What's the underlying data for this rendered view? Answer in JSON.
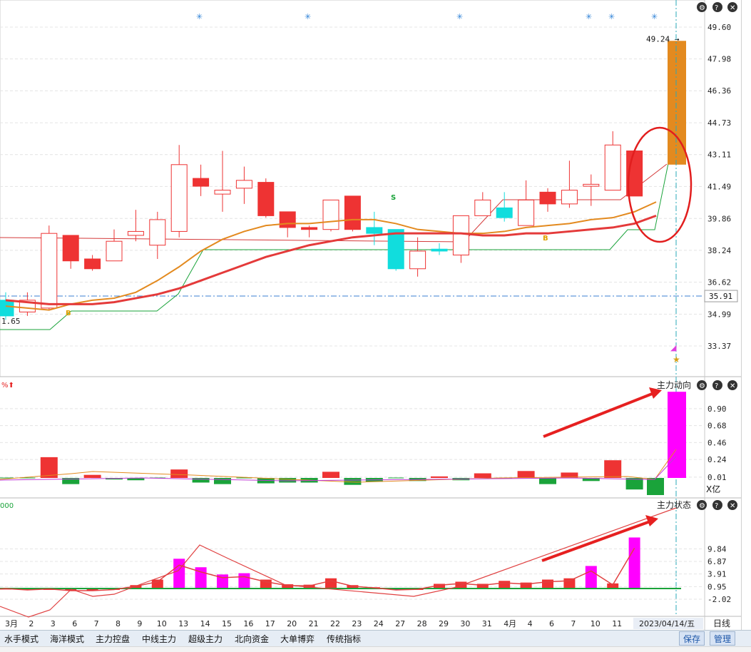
{
  "chart_data": [
    {
      "type": "candlestick",
      "panel": "price",
      "y_ticks": [
        "49.60",
        "47.98",
        "46.36",
        "44.73",
        "43.11",
        "41.49",
        "39.86",
        "38.24",
        "36.62",
        "34.99",
        "33.37"
      ],
      "price_line_label": "35.91",
      "high_label": "49.24",
      "left_low_label": "1.65",
      "x_tick_labels": [
        "3月",
        "2",
        "3",
        "6",
        "7",
        "8",
        "9",
        "10",
        "13",
        "14",
        "15",
        "16",
        "17",
        "20",
        "21",
        "22",
        "23",
        "24",
        "27",
        "28",
        "29",
        "30",
        "31",
        "4月",
        "4",
        "6",
        "7",
        "10",
        "11"
      ],
      "date_label": "2023/04/14/五",
      "period_label": "日线",
      "candles": [
        {
          "o": 35.7,
          "c": 34.9,
          "h": 36.1,
          "l": 34.7,
          "color": "cyan"
        },
        {
          "o": 35.1,
          "c": 35.7,
          "h": 36.1,
          "l": 34.9,
          "color": "white"
        },
        {
          "o": 35.3,
          "c": 39.1,
          "h": 39.5,
          "l": 35.2,
          "color": "white"
        },
        {
          "o": 39.0,
          "c": 37.7,
          "h": 39.0,
          "l": 37.3,
          "color": "red"
        },
        {
          "o": 37.3,
          "c": 37.8,
          "h": 38.0,
          "l": 37.2,
          "color": "red"
        },
        {
          "o": 37.7,
          "c": 38.7,
          "h": 39.3,
          "l": 37.7,
          "color": "white"
        },
        {
          "o": 39.0,
          "c": 39.2,
          "h": 40.3,
          "l": 38.7,
          "color": "white"
        },
        {
          "o": 38.5,
          "c": 39.8,
          "h": 40.2,
          "l": 37.8,
          "color": "white"
        },
        {
          "o": 39.2,
          "c": 42.6,
          "h": 43.6,
          "l": 38.9,
          "color": "white"
        },
        {
          "o": 41.9,
          "c": 41.5,
          "h": 42.6,
          "l": 41.0,
          "color": "red"
        },
        {
          "o": 41.1,
          "c": 41.3,
          "h": 43.3,
          "l": 40.2,
          "color": "white"
        },
        {
          "o": 41.4,
          "c": 41.8,
          "h": 42.5,
          "l": 40.6,
          "color": "white"
        },
        {
          "o": 41.7,
          "c": 40.0,
          "h": 41.9,
          "l": 39.9,
          "color": "red"
        },
        {
          "o": 40.2,
          "c": 39.4,
          "h": 40.2,
          "l": 38.9,
          "color": "red"
        },
        {
          "o": 39.3,
          "c": 39.4,
          "h": 39.5,
          "l": 38.9,
          "color": "red"
        },
        {
          "o": 39.3,
          "c": 40.8,
          "h": 40.8,
          "l": 39.2,
          "color": "white"
        },
        {
          "o": 41.0,
          "c": 39.3,
          "h": 41.0,
          "l": 39.2,
          "color": "red"
        },
        {
          "o": 39.1,
          "c": 39.4,
          "h": 40.2,
          "l": 38.5,
          "color": "cyan"
        },
        {
          "o": 39.3,
          "c": 37.3,
          "h": 39.3,
          "l": 37.2,
          "color": "cyan"
        },
        {
          "o": 37.3,
          "c": 38.2,
          "h": 38.9,
          "l": 36.9,
          "color": "white"
        },
        {
          "o": 38.2,
          "c": 38.3,
          "h": 38.6,
          "l": 38.0,
          "color": "cyan"
        },
        {
          "o": 38.0,
          "c": 40.0,
          "h": 40.0,
          "l": 37.6,
          "color": "white"
        },
        {
          "o": 40.0,
          "c": 40.8,
          "h": 41.2,
          "l": 40.0,
          "color": "white"
        },
        {
          "o": 39.9,
          "c": 40.4,
          "h": 41.2,
          "l": 39.7,
          "color": "cyan"
        },
        {
          "o": 40.8,
          "c": 39.5,
          "h": 41.8,
          "l": 39.5,
          "color": "white"
        },
        {
          "o": 41.2,
          "c": 40.6,
          "h": 41.4,
          "l": 40.2,
          "color": "red"
        },
        {
          "o": 40.6,
          "c": 41.3,
          "h": 42.8,
          "l": 40.4,
          "color": "white"
        },
        {
          "o": 41.6,
          "c": 41.5,
          "h": 42.1,
          "l": 40.5,
          "color": "white"
        },
        {
          "o": 41.3,
          "c": 43.6,
          "h": 44.3,
          "l": 41.3,
          "color": "white"
        },
        {
          "o": 43.3,
          "c": 41.0,
          "h": 43.3,
          "l": 41.0,
          "color": "red"
        }
      ],
      "forecast_bar": {
        "low": 42.6,
        "high": 48.9,
        "color": "#e38a1f"
      },
      "ma_red": [
        35.7,
        35.6,
        35.5,
        35.5,
        35.5,
        35.6,
        35.8,
        36.0,
        36.3,
        36.7,
        37.1,
        37.5,
        37.9,
        38.2,
        38.5,
        38.7,
        38.9,
        39.0,
        39.1,
        39.1,
        39.1,
        39.1,
        39.0,
        39.0,
        39.1,
        39.1,
        39.2,
        39.3,
        39.4,
        39.6,
        40.0
      ],
      "ma_orange": [
        35.4,
        35.3,
        35.2,
        35.5,
        35.7,
        35.8,
        36.1,
        36.7,
        37.4,
        38.2,
        38.8,
        39.2,
        39.5,
        39.6,
        39.6,
        39.7,
        39.8,
        39.8,
        39.6,
        39.3,
        39.2,
        39.1,
        39.1,
        39.2,
        39.4,
        39.5,
        39.6,
        39.8,
        39.9,
        40.2,
        40.7
      ]
    },
    {
      "type": "bar",
      "panel": "main-force-direction",
      "title": "主力动向",
      "unit": "X亿",
      "y_ticks": [
        "0.90",
        "0.68",
        "0.46",
        "0.24",
        "0.01"
      ],
      "values": [
        -0.01,
        0.0,
        0.0,
        0.27,
        -0.08,
        0.04,
        -0.02,
        -0.03,
        0.0,
        0.11,
        -0.06,
        -0.08,
        0.0,
        -0.07,
        -0.06,
        -0.06,
        0.08,
        -0.09,
        -0.05,
        0.0,
        -0.04,
        0.02,
        -0.03,
        0.06,
        0.0,
        0.09,
        -0.08,
        0.07,
        -0.04,
        0.23,
        -0.15,
        1.12
      ]
    },
    {
      "type": "bar",
      "panel": "main-force-state",
      "title": "主力状态",
      "y_ticks": [
        "9.84",
        "6.87",
        "3.91",
        "0.95",
        "-2.02"
      ],
      "values": [
        0.1,
        0.6,
        0.2,
        0.5,
        0.0,
        0.0,
        0.3,
        1.3,
        2.6,
        7.5,
        5.5,
        3.8,
        4.1,
        2.6,
        1.5,
        1.4,
        2.9,
        1.3,
        0.8,
        0.2,
        0.4,
        1.6,
        2.1,
        1.6,
        2.3,
        1.9,
        2.6,
        2.9,
        5.8,
        1.7,
        12.5
      ],
      "bar_colors": [
        "#d33",
        "#d33",
        "#d33",
        "#d33",
        "#d33",
        "#d33",
        "#e33",
        "#e33",
        "#e33",
        "#f0f",
        "#f0f",
        "#f0f",
        "#f0f",
        "#e33",
        "#e33",
        "#e33",
        "#e33",
        "#e33",
        "#e33",
        "#1a3bd6",
        "#e33",
        "#e33",
        "#e33",
        "#e33",
        "#e33",
        "#e33",
        "#e33",
        "#e33",
        "#f0f",
        "#e33",
        "#f0f"
      ]
    }
  ],
  "tabs": [
    "水手模式",
    "海洋模式",
    "主力控盘",
    "中线主力",
    "超级主力",
    "北向资金",
    "大单博弈",
    "传统指标"
  ],
  "buttons": {
    "save": "保存",
    "manage": "管理"
  },
  "colors": {
    "up": "#ee3333",
    "down_cyan": "#11dddd",
    "ma_red": "#e43a3a",
    "ma_orange": "#e38a1f",
    "magenta": "#ff00ff",
    "green": "#1aa33a"
  }
}
